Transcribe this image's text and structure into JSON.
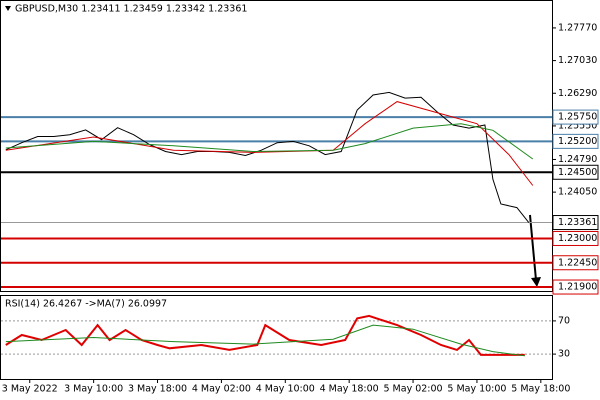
{
  "chart_data": [
    {
      "type": "line",
      "title": "GBPUSD,M30  1.23411 1.23459 1.23342 1.23361",
      "xlim": [
        -1.6,
        67.4
      ],
      "ylim": [
        1.2181,
        1.2838
      ],
      "yticks": [
        {
          "value": 1.2777,
          "label": "1.27770"
        },
        {
          "value": 1.2703,
          "label": "1.27030"
        },
        {
          "value": 1.2629,
          "label": "1.26290"
        },
        {
          "value": 1.2555,
          "label": "1.25550"
        },
        {
          "value": 1.2479,
          "label": "1.24790"
        },
        {
          "value": 1.2405,
          "label": "1.24050"
        }
      ],
      "levels": [
        {
          "value": 1.2575,
          "label": "1.25750",
          "color": "#4a7fa8"
        },
        {
          "value": 1.252,
          "label": "1.25200",
          "color": "#4a7fa8"
        },
        {
          "value": 1.245,
          "label": "1.24500",
          "color": "#000000"
        },
        {
          "value": 1.23,
          "label": "1.23000",
          "color": "#d40000"
        },
        {
          "value": 1.2245,
          "label": "1.22450",
          "color": "#d40000"
        },
        {
          "value": 1.219,
          "label": "1.21900",
          "color": "#d40000"
        }
      ],
      "current": {
        "value": 1.23361,
        "label": "1.23361",
        "color": "#999999"
      },
      "series": [
        {
          "color": "#000000",
          "x": [
            -1,
            1,
            3,
            5,
            7,
            9,
            11,
            13,
            15,
            17,
            19,
            21,
            23,
            25,
            27,
            29,
            31,
            33,
            35,
            37,
            39,
            41,
            43,
            45,
            47,
            49,
            51,
            53,
            55,
            57,
            59,
            60,
            61,
            63,
            64.5
          ],
          "values": [
            1.2501,
            1.2517,
            1.2531,
            1.2531,
            1.2535,
            1.2546,
            1.2524,
            1.2551,
            1.2535,
            1.2513,
            1.2497,
            1.249,
            1.2497,
            1.2497,
            1.2495,
            1.2488,
            1.25,
            1.2517,
            1.252,
            1.251,
            1.249,
            1.2497,
            1.2591,
            1.2625,
            1.2631,
            1.2618,
            1.262,
            1.2587,
            1.2557,
            1.255,
            1.2557,
            1.2434,
            1.2378,
            1.237,
            1.2336
          ]
        },
        {
          "color": "#d40000",
          "x": [
            -1,
            10,
            20,
            30,
            40,
            44,
            48,
            54,
            58,
            62,
            65
          ],
          "values": [
            1.25,
            1.253,
            1.25,
            1.2495,
            1.25,
            1.256,
            1.261,
            1.258,
            1.256,
            1.249,
            1.242
          ]
        },
        {
          "color": "#1e8a1e",
          "x": [
            -1,
            10,
            20,
            30,
            40,
            44,
            50,
            56,
            60,
            65
          ],
          "values": [
            1.2505,
            1.252,
            1.251,
            1.2497,
            1.25,
            1.2515,
            1.255,
            1.256,
            1.2545,
            1.248
          ]
        }
      ]
    },
    {
      "type": "line",
      "title": "RSI(14) 26.4267 ->MA(7) 26.0997",
      "xlim": [
        -1.6,
        67.4
      ],
      "ylim": [
        0,
        100
      ],
      "yticks": [
        70,
        30
      ],
      "xticks": [
        {
          "value": 2,
          "label": "3 May 2022"
        },
        {
          "value": 10,
          "label": "3 May 10:00"
        },
        {
          "value": 18,
          "label": "3 May 18:00"
        },
        {
          "value": 26,
          "label": "4 May 02:00"
        },
        {
          "value": 34,
          "label": "4 May 10:00"
        },
        {
          "value": 42,
          "label": "4 May 18:00"
        },
        {
          "value": 50,
          "label": "5 May 02:00"
        },
        {
          "value": 58,
          "label": "5 May 10:00"
        },
        {
          "value": 66,
          "label": "5 May 18:00"
        }
      ],
      "series": [
        {
          "color": "#e00000",
          "x": [
            -1,
            1,
            3.5,
            6.5,
            8.5,
            10.5,
            12,
            14,
            16,
            18,
            19.5,
            23.5,
            27,
            30.5,
            31.5,
            34.5,
            38.5,
            41.5,
            43,
            44.5,
            48,
            51,
            53.5,
            55.5,
            57,
            58.5,
            61,
            64
          ],
          "values": [
            41,
            53,
            47,
            59,
            41,
            65,
            47,
            59,
            47,
            41,
            37,
            41,
            35,
            41,
            65,
            47,
            41,
            47,
            73,
            76,
            65,
            53,
            41,
            35,
            47,
            29,
            29,
            29
          ]
        },
        {
          "color": "#1e8a1e",
          "x": [
            -1,
            10,
            20,
            30,
            40,
            45,
            50,
            56,
            60,
            64
          ],
          "values": [
            45,
            50,
            45,
            42,
            48,
            65,
            60,
            42,
            33,
            28
          ]
        }
      ]
    }
  ]
}
